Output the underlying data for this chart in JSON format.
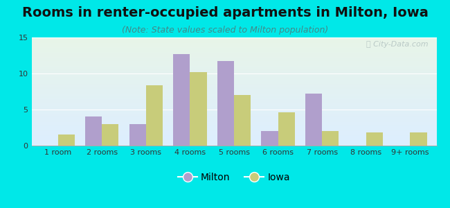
{
  "title": "Rooms in renter-occupied apartments in Milton, Iowa",
  "subtitle": "(Note: State values scaled to Milton population)",
  "categories": [
    "1 room",
    "2 rooms",
    "3 rooms",
    "4 rooms",
    "5 rooms",
    "6 rooms",
    "7 rooms",
    "8 rooms",
    "9+ rooms"
  ],
  "milton_values": [
    0,
    4.0,
    3.0,
    12.7,
    11.7,
    2.0,
    7.2,
    0,
    0
  ],
  "iowa_values": [
    1.5,
    3.0,
    8.4,
    10.2,
    7.0,
    4.6,
    2.0,
    1.8,
    1.8
  ],
  "milton_color": "#b09fcc",
  "iowa_color": "#c8cc7a",
  "background_outer": "#00e8e8",
  "ylim": [
    0,
    15
  ],
  "yticks": [
    0,
    5,
    10,
    15
  ],
  "bar_width": 0.38,
  "title_fontsize": 14,
  "subtitle_fontsize": 9,
  "tick_fontsize": 8,
  "legend_fontsize": 10,
  "watermark_text": "⌕ City-Data.com"
}
